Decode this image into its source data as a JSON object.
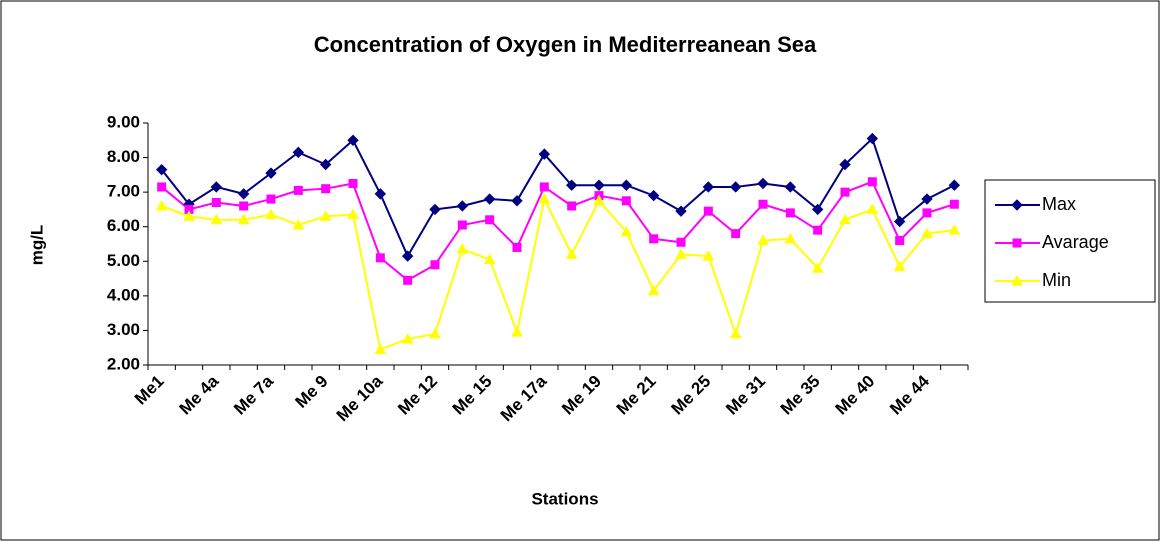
{
  "chart_data": {
    "type": "line",
    "title": "Concentration of Oxygen in Mediterreanean Sea",
    "x_label": "Stations",
    "y_label": "mg/L",
    "categories": [
      "Me1",
      null,
      "Me 4a",
      null,
      "Me 7a",
      null,
      "Me 9",
      null,
      "Me 10a",
      null,
      "Me 12",
      null,
      "Me 15",
      null,
      "Me 17a",
      null,
      "Me 19",
      null,
      "Me 21",
      null,
      "Me 25",
      null,
      "Me 31",
      null,
      "Me 35",
      null,
      "Me 40",
      null,
      "Me 44",
      null
    ],
    "series": [
      {
        "name": "Max",
        "color": "#000080",
        "marker": "diamond",
        "values": [
          7.65,
          6.65,
          7.15,
          6.95,
          7.55,
          8.15,
          7.8,
          8.5,
          6.95,
          5.15,
          6.5,
          6.6,
          6.8,
          6.75,
          8.1,
          7.2,
          7.2,
          7.2,
          6.9,
          6.45,
          7.15,
          7.15,
          7.25,
          7.15,
          6.5,
          7.8,
          8.55,
          6.15,
          6.8,
          7.2
        ]
      },
      {
        "name": "Avarage",
        "color": "#ff00ff",
        "marker": "square",
        "values": [
          7.15,
          6.5,
          6.7,
          6.6,
          6.8,
          7.05,
          7.1,
          7.25,
          5.1,
          4.45,
          4.9,
          6.05,
          6.2,
          5.4,
          7.15,
          6.6,
          6.9,
          6.75,
          5.65,
          5.55,
          6.45,
          5.8,
          6.65,
          6.4,
          5.9,
          7.0,
          7.3,
          5.6,
          6.4,
          6.65
        ]
      },
      {
        "name": "Min",
        "color": "#ffff00",
        "marker": "triangle",
        "values": [
          6.6,
          6.3,
          6.2,
          6.2,
          6.35,
          6.05,
          6.3,
          6.35,
          2.45,
          2.75,
          2.9,
          5.35,
          5.05,
          2.95,
          6.8,
          5.2,
          6.75,
          5.85,
          4.15,
          5.2,
          5.15,
          2.9,
          5.6,
          5.65,
          4.8,
          6.2,
          6.5,
          4.85,
          5.8,
          5.9
        ]
      }
    ],
    "ylim": [
      2,
      9
    ],
    "yticks": [
      {
        "value": 2,
        "label": "2.00"
      },
      {
        "value": 3,
        "label": "3.00"
      },
      {
        "value": 4,
        "label": "4.00"
      },
      {
        "value": 5,
        "label": "5.00"
      },
      {
        "value": 6,
        "label": "6.00"
      },
      {
        "value": 7,
        "label": "7.00"
      },
      {
        "value": 8,
        "label": "8.00"
      },
      {
        "value": 9,
        "label": "9.00"
      }
    ],
    "grid": false,
    "legend": "right"
  }
}
